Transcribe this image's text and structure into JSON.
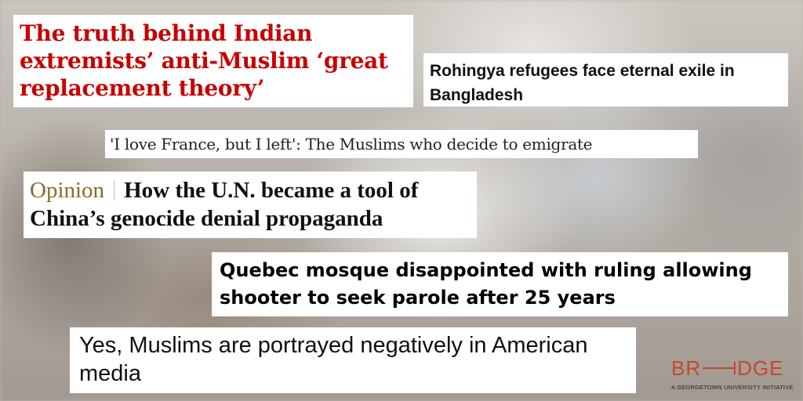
{
  "headlines": {
    "guardian": "The truth behind Indian extremists’ anti-Muslim ‘great replacement theory’",
    "rohingya": "Rohingya refugees face eternal exile in Bangladesh",
    "france": "'I love France, but I left': The Muslims who decide to emigrate",
    "opinion_label": "Opinion",
    "un": "How the U.N. became a tool of China’s genocide denial propaganda",
    "quebec": "Quebec mosque disappointed with ruling allowing shooter to seek parole after 25 years",
    "media": "Yes, Muslims are portrayed negatively in American media"
  },
  "logo": {
    "word_left": "BR",
    "word_right": "DGE",
    "tagline": "A GEORGETOWN UNIVERSITY INITIATIVE"
  },
  "colors": {
    "guardian_red": "#c70000",
    "opinion_gold": "#8b6a2b",
    "logo_orange": "#c8472e"
  }
}
